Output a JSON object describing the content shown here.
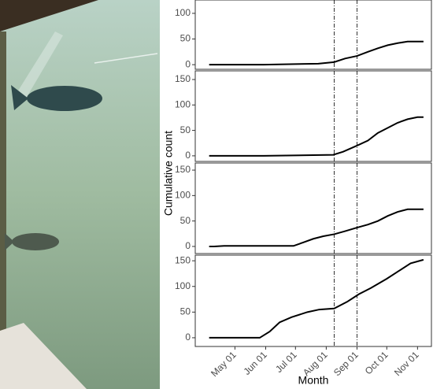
{
  "chart_data": [
    {
      "type": "line",
      "color": "#000000",
      "x": [
        95,
        150,
        205,
        221,
        232,
        244,
        255,
        265,
        275,
        285,
        295,
        311
      ],
      "values": [
        0,
        0,
        2,
        5,
        12,
        17,
        25,
        32,
        38,
        42,
        45,
        45
      ],
      "xlim": [
        81,
        319
      ],
      "ylim": [
        -9,
        126
      ],
      "yticks": [
        0,
        50,
        100
      ],
      "vlines": [
        221,
        244
      ]
    },
    {
      "type": "line",
      "color": "#000000",
      "x": [
        95,
        150,
        220,
        230,
        244,
        255,
        265,
        275,
        285,
        295,
        305,
        311
      ],
      "values": [
        0,
        0,
        2,
        8,
        20,
        30,
        45,
        55,
        65,
        72,
        76,
        76
      ],
      "xlim": [
        81,
        319
      ],
      "ylim": [
        -11,
        167
      ],
      "yticks": [
        0,
        50,
        100,
        150
      ],
      "vlines": [
        221,
        244
      ]
    },
    {
      "type": "line",
      "color": "#000000",
      "x": [
        95,
        100,
        110,
        180,
        190,
        200,
        210,
        221,
        232,
        244,
        255,
        265,
        275,
        285,
        295,
        311
      ],
      "values": [
        0,
        0,
        1,
        1,
        8,
        15,
        20,
        24,
        30,
        37,
        43,
        50,
        60,
        68,
        73,
        73
      ],
      "xlim": [
        81,
        319
      ],
      "ylim": [
        -14,
        164
      ],
      "yticks": [
        0,
        50,
        100,
        150
      ],
      "vlines": [
        221,
        244
      ]
    },
    {
      "type": "line",
      "color": "#000000",
      "x": [
        95,
        146,
        156,
        166,
        178,
        194,
        206,
        221,
        234,
        246,
        258,
        274,
        286,
        298,
        311
      ],
      "values": [
        0,
        0,
        12,
        30,
        40,
        50,
        55,
        57,
        70,
        85,
        97,
        115,
        130,
        145,
        152
      ],
      "xlim": [
        81,
        319
      ],
      "ylim": [
        -17,
        161
      ],
      "yticks": [
        0,
        50,
        100,
        150
      ],
      "vlines": [
        221,
        244
      ],
      "xticks": [
        {
          "value": 121,
          "label": "May 01"
        },
        {
          "value": 152,
          "label": "Jun 01"
        },
        {
          "value": 182,
          "label": "Jul 01"
        },
        {
          "value": 213,
          "label": "Aug 01"
        },
        {
          "value": 244,
          "label": "Sep 01"
        },
        {
          "value": 274,
          "label": "Oct 01"
        },
        {
          "value": 305,
          "label": "Nov 01"
        }
      ],
      "x_label": "Month",
      "y_label": "Cumulative count"
    }
  ]
}
